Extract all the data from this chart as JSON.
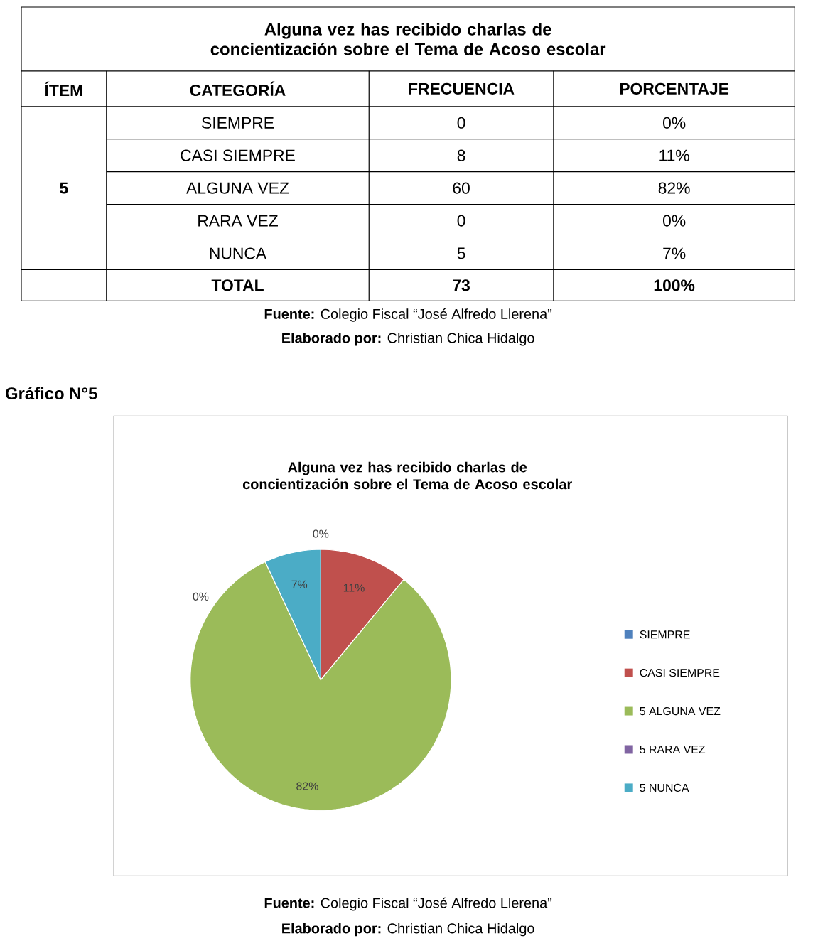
{
  "chart_data": [
    {
      "type": "other",
      "title": "Alguna vez has recibido charlas de concientización sobre el Tema de Acoso escolar",
      "annotations": [
        "ÍTEM",
        "CATEGORÍA",
        "FRECUENCIA",
        "PORCENTAJE",
        "5",
        "SIEMPRE",
        "0",
        "0%",
        "CASI SIEMPRE",
        "8",
        "11%",
        "ALGUNA VEZ",
        "60",
        "82%",
        "RARA VEZ",
        "0",
        "0%",
        "NUNCA",
        "5",
        "7%",
        "TOTAL",
        "73",
        "100%",
        "**Fuente:** Colegio Fiscal “José Alfredo Llerena”",
        "**Elaborado por:** Christian Chica Hidalgo"
      ]
    },
    {
      "type": "pie",
      "title": "Alguna vez has recibido charlas de concientización sobre el Tema de Acoso escolar",
      "categories": [
        "SIEMPRE",
        "CASI SIEMPRE",
        "5 ALGUNA VEZ",
        "5 RARA VEZ",
        "5 NUNCA"
      ],
      "values": [
        0,
        11,
        82,
        0,
        7
      ],
      "value_labels": [
        "0%",
        "11%",
        "82%",
        "0%",
        "7%"
      ],
      "colors": [
        "#4f81bd",
        "#c0504d",
        "#9bbb59",
        "#8064a2",
        "#4bacc6"
      ],
      "legend": "right",
      "annotations": [
        "**Gráfico N°5**",
        "**Fuente:** Colegio Fiscal “José Alfredo Llerena”",
        "**Elaborado por:** Christian Chica Hidalgo"
      ]
    }
  ]
}
